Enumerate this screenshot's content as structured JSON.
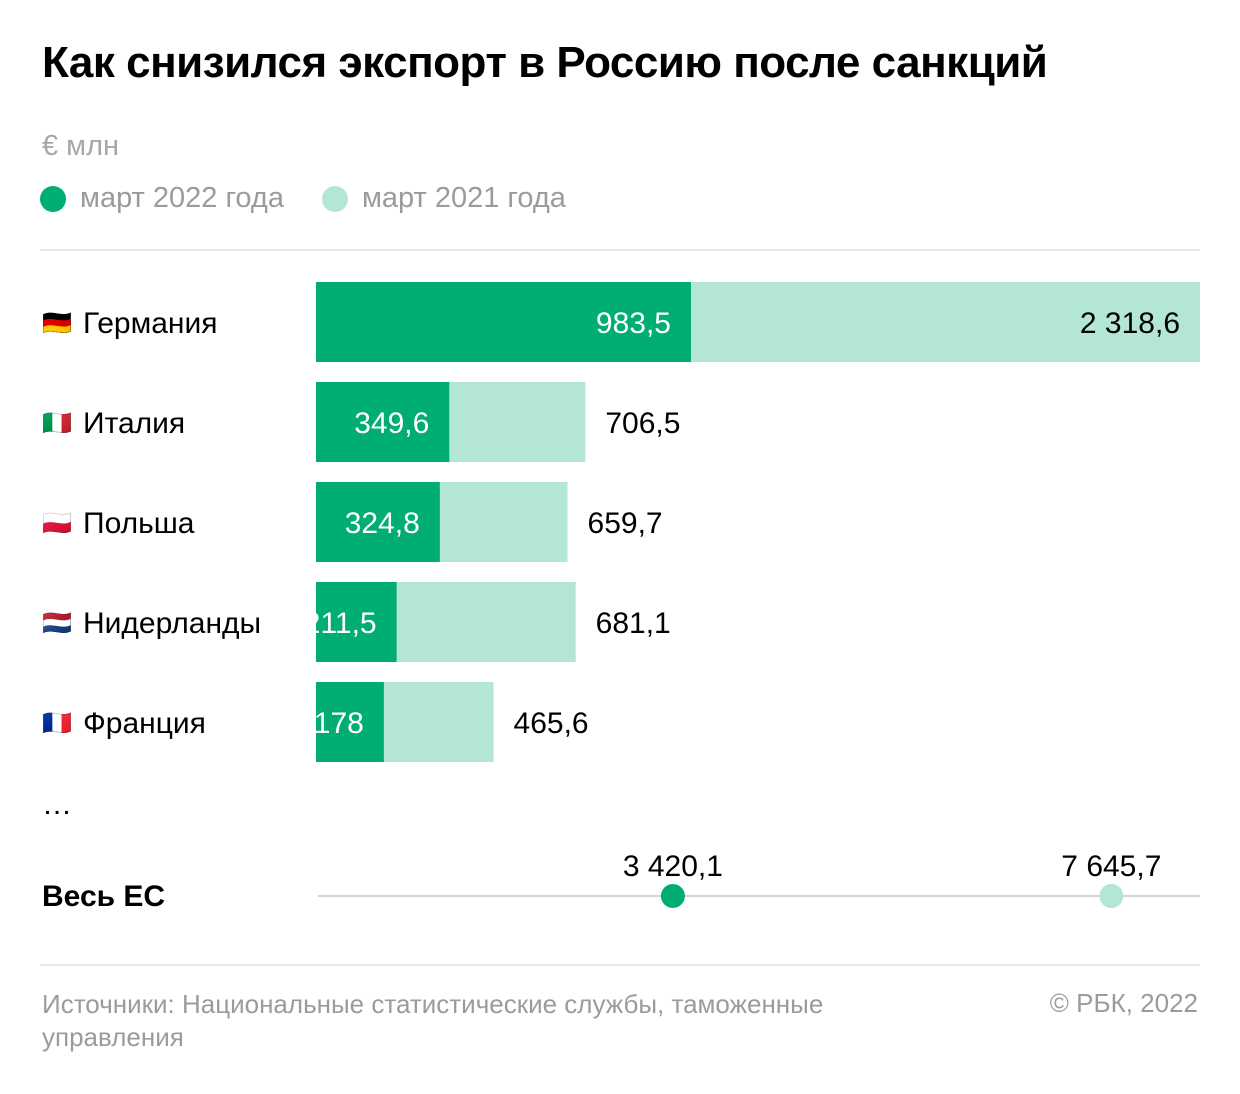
{
  "title": "Как снизился экспорт в Россию после санкций",
  "unit": "€ млн",
  "colors": {
    "current": "#00ad74",
    "previous": "#b3e6d4",
    "axis": "#d4d4d4"
  },
  "chart_data": {
    "type": "bar",
    "orientation": "horizontal",
    "categories": [
      "Германия",
      "Италия",
      "Польша",
      "Нидерланды",
      "Франция"
    ],
    "flags": [
      "🇩🇪",
      "🇮🇹",
      "🇵🇱",
      "🇳🇱",
      "🇫🇷"
    ],
    "series": [
      {
        "name": "март 2022 года",
        "values": [
          983.5,
          349.6,
          324.8,
          211.5,
          178
        ],
        "labels": [
          "983,5",
          "349,6",
          "324,8",
          "211,5",
          "178"
        ]
      },
      {
        "name": "март 2021 года",
        "values": [
          2318.6,
          706.5,
          659.7,
          681.1,
          465.6
        ],
        "labels": [
          "2 318,6",
          "706,5",
          "659,7",
          "681,1",
          "465,6"
        ]
      }
    ],
    "ellipsis": "…",
    "total": {
      "label": "Весь ЕС",
      "values": [
        3420.1,
        7645.7
      ],
      "labels": [
        "3 420,1",
        "7 645,7"
      ],
      "xlim": [
        0,
        8500
      ]
    }
  },
  "footer": {
    "source": "Источники: Национальные статистические службы, таможенные управления",
    "copyright": "© РБК, 2022"
  }
}
